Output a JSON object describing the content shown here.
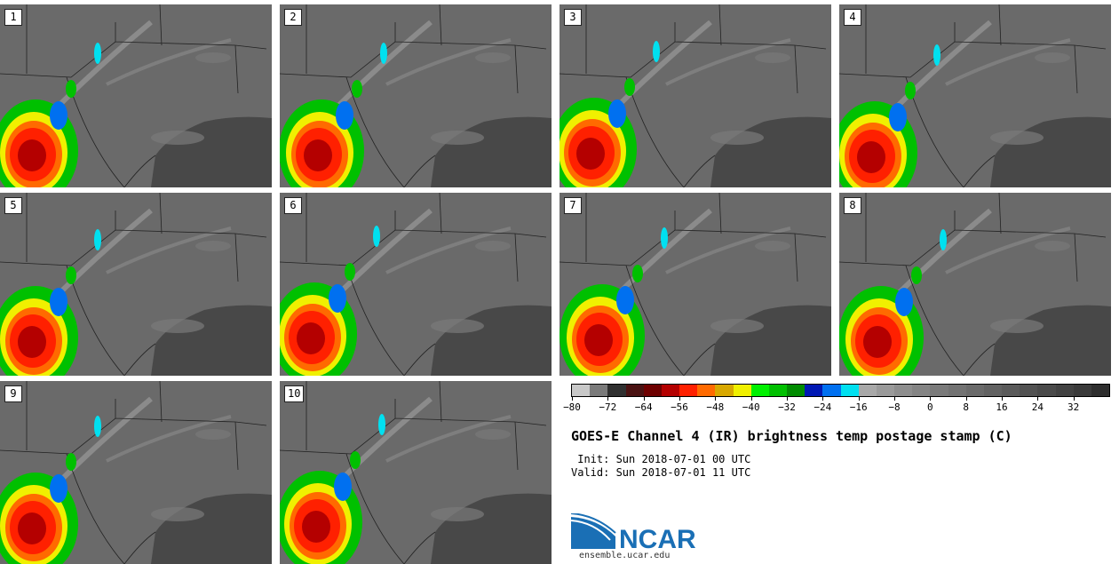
{
  "panels": [
    {
      "label": "1"
    },
    {
      "label": "2"
    },
    {
      "label": "3"
    },
    {
      "label": "4"
    },
    {
      "label": "5"
    },
    {
      "label": "6"
    },
    {
      "label": "7"
    },
    {
      "label": "8"
    },
    {
      "label": "9"
    },
    {
      "label": "10"
    }
  ],
  "colorbar": {
    "colors": [
      "#c8c8c8",
      "#7a7a7a",
      "#303030",
      "#4a1212",
      "#6e0000",
      "#b40000",
      "#ff2000",
      "#ff6a00",
      "#d8a800",
      "#f0f000",
      "#00f000",
      "#00c000",
      "#008c00",
      "#0018b4",
      "#0070f0",
      "#00e0f0",
      "#a8a8a8",
      "#9a9a9a",
      "#8e8e8e",
      "#848484",
      "#7a7a7a",
      "#727272",
      "#6a6a6a",
      "#626262",
      "#5a5a5a",
      "#525252",
      "#4a4a4a",
      "#424242",
      "#3a3a3a",
      "#2e2e2e"
    ],
    "tick_labels": [
      "−80",
      "−72",
      "−64",
      "−56",
      "−48",
      "−40",
      "−32",
      "−24",
      "−16",
      "−8",
      "0",
      "8",
      "16",
      "24",
      "32"
    ]
  },
  "title": "GOES-E Channel 4 (IR) brightness temp postage stamp (C)",
  "init_text": " Init: Sun 2018-07-01 00 UTC",
  "valid_text": "Valid: Sun 2018-07-01 11 UTC",
  "logo": {
    "text": "NCAR",
    "url": "ensemble.ucar.edu"
  }
}
